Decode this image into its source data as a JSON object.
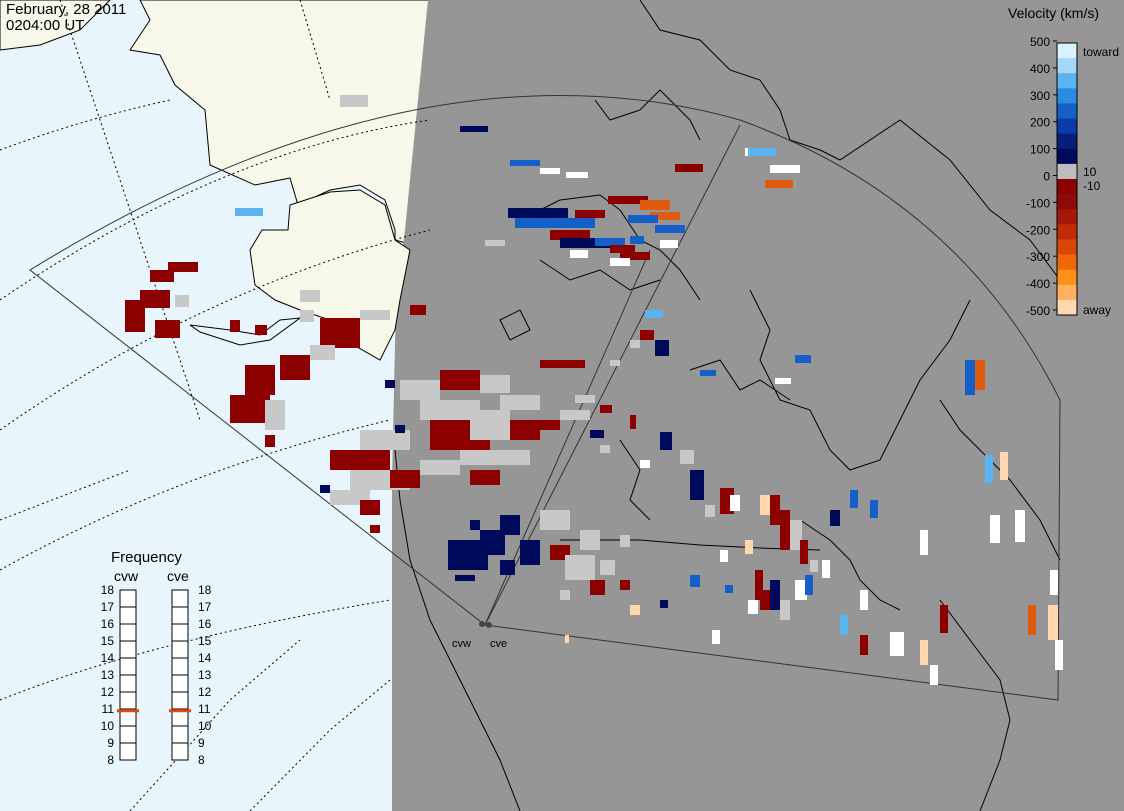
{
  "header": {
    "date": "February, 28 2011",
    "time": "0204:00 UT"
  },
  "sites": [
    {
      "name": "cvw"
    },
    {
      "name": "cve"
    }
  ],
  "velocity_scale": {
    "title": "Velocity (km/s)",
    "toward_label": "toward",
    "away_label": "away",
    "ticks": [
      "500",
      "400",
      "300",
      "200",
      "100",
      "0",
      "-100",
      "-200",
      "-300",
      "-400",
      "-500"
    ],
    "inner_ticks": [
      "10",
      "-10"
    ],
    "colors": [
      "#d8f2ff",
      "#a6d8f5",
      "#5ab4f2",
      "#2a8cde",
      "#1460c8",
      "#083ca8",
      "#04207c",
      "#000a5a",
      "#bdbdbd",
      "#8c0000",
      "#8e0a0a",
      "#a81808",
      "#c02c08",
      "#d84608",
      "#ee6808",
      "#ff9018",
      "#ffb060",
      "#ffd8b0"
    ]
  },
  "frequency_panel": {
    "title": "Frequency",
    "radars": [
      {
        "name": "cvw",
        "value_mhz": 10.9
      },
      {
        "name": "cve",
        "value_mhz": 10.9
      }
    ],
    "ticks": [
      "18",
      "17",
      "16",
      "15",
      "14",
      "13",
      "12",
      "11",
      "10",
      "9",
      "8"
    ],
    "marker_color": "#e04a10"
  },
  "colors": {
    "land_outside_view": "#f7f7ea",
    "ocean_outside_view": "#e8f5fd",
    "night_shade": "#969696",
    "coastline": "#000000",
    "grid": "#000000"
  }
}
